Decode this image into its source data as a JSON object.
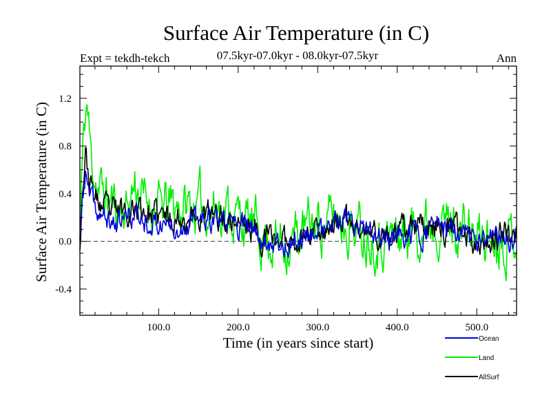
{
  "chart_data": {
    "type": "line",
    "title": "Surface Air Temperature (in C)",
    "subtitle": "07.5kyr-07.0kyr - 08.0kyr-07.5kyr",
    "expt_label": "Expt = tekdh-tekch",
    "season_label": "Ann",
    "xlabel": "Time (in years since start)",
    "ylabel": "Surface Air Temperature (in C)",
    "xlim": [
      1,
      550
    ],
    "ylim": [
      -0.62,
      1.47
    ],
    "x_ticks": [
      100,
      200,
      300,
      400,
      500
    ],
    "x_tick_labels": [
      "100.0",
      "200.0",
      "300.0",
      "400.0",
      "500.0"
    ],
    "y_ticks": [
      -0.4,
      0.0,
      0.4,
      0.8,
      1.2
    ],
    "y_tick_labels": [
      "-0.4",
      "0.0",
      "0.4",
      "0.8",
      "1.2"
    ],
    "zero_line": 0.0,
    "series_length": 550,
    "series": [
      {
        "name": "Land",
        "color": "#00ee00",
        "trend": [
          [
            1,
            0.0
          ],
          [
            3,
            0.5
          ],
          [
            7,
            1.0
          ],
          [
            10,
            1.15
          ],
          [
            15,
            0.7
          ],
          [
            25,
            0.45
          ],
          [
            45,
            0.3
          ],
          [
            60,
            0.28
          ],
          [
            70,
            0.5
          ],
          [
            80,
            0.35
          ],
          [
            100,
            0.28
          ],
          [
            140,
            0.3
          ],
          [
            180,
            0.3
          ],
          [
            200,
            0.22
          ],
          [
            230,
            0.05
          ],
          [
            260,
            0.0
          ],
          [
            300,
            0.15
          ],
          [
            330,
            0.2
          ],
          [
            360,
            0.08
          ],
          [
            400,
            0.05
          ],
          [
            450,
            0.22
          ],
          [
            500,
            0.03
          ],
          [
            550,
            0.08
          ]
        ],
        "noise_amplitude": 0.3,
        "seed": 11
      },
      {
        "name": "AllSurf",
        "color": "#000000",
        "trend": [
          [
            1,
            0.0
          ],
          [
            4,
            0.45
          ],
          [
            8,
            0.75
          ],
          [
            12,
            0.55
          ],
          [
            20,
            0.35
          ],
          [
            40,
            0.22
          ],
          [
            70,
            0.3
          ],
          [
            100,
            0.2
          ],
          [
            150,
            0.22
          ],
          [
            200,
            0.18
          ],
          [
            230,
            0.04
          ],
          [
            260,
            0.0
          ],
          [
            300,
            0.12
          ],
          [
            330,
            0.17
          ],
          [
            360,
            0.06
          ],
          [
            400,
            0.04
          ],
          [
            450,
            0.16
          ],
          [
            500,
            0.02
          ],
          [
            550,
            0.05
          ]
        ],
        "noise_amplitude": 0.16,
        "seed": 23
      },
      {
        "name": "Ocean",
        "color": "#0000dd",
        "trend": [
          [
            1,
            0.0
          ],
          [
            4,
            0.35
          ],
          [
            8,
            0.55
          ],
          [
            12,
            0.4
          ],
          [
            20,
            0.25
          ],
          [
            40,
            0.15
          ],
          [
            70,
            0.22
          ],
          [
            100,
            0.15
          ],
          [
            150,
            0.17
          ],
          [
            200,
            0.14
          ],
          [
            230,
            0.03
          ],
          [
            260,
            -0.02
          ],
          [
            300,
            0.1
          ],
          [
            330,
            0.15
          ],
          [
            360,
            0.05
          ],
          [
            400,
            0.02
          ],
          [
            450,
            0.12
          ],
          [
            500,
            0.0
          ],
          [
            550,
            0.03
          ]
        ],
        "noise_amplitude": 0.14,
        "seed": 37
      }
    ],
    "legend": [
      {
        "name": "Ocean",
        "color": "#0000dd"
      },
      {
        "name": "Land",
        "color": "#00ee00"
      },
      {
        "name": "AllSurf",
        "color": "#000000"
      }
    ],
    "legend_position": "bottom-right"
  }
}
